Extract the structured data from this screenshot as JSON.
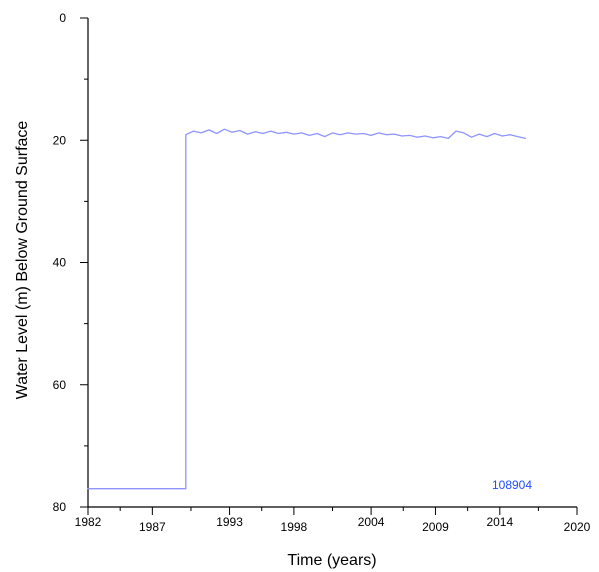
{
  "chart_data": {
    "type": "line",
    "title": "",
    "xlabel": "Time (years)",
    "ylabel": "Water Level (m) Below Ground Surface",
    "xlim": [
      1982,
      2020
    ],
    "ylim": [
      80,
      0
    ],
    "y_axis_inverted": true,
    "xticks": [
      1982,
      1987,
      1993,
      1998,
      2004,
      2009,
      2014,
      2020
    ],
    "xtick_labels": [
      "1982",
      "1987",
      "1993",
      "1998",
      "2004",
      "2009",
      "2014",
      "2020"
    ],
    "yticks": [
      0,
      20,
      40,
      60,
      80
    ],
    "ytick_labels": [
      "0",
      "20",
      "40",
      "60",
      "80"
    ],
    "grid": false,
    "legend": "none",
    "series_label": {
      "text": "108904",
      "color": "#1f4dff"
    },
    "series": [
      {
        "color": "#8f94ff",
        "x": [
          1982,
          1989.6,
          1989.6,
          1990.2,
          1990.8,
          1991.4,
          1992.0,
          1992.6,
          1993.2,
          1993.8,
          1994.4,
          1995.0,
          1995.6,
          1996.2,
          1996.8,
          1997.4,
          1998.0,
          1998.6,
          1999.2,
          1999.8,
          2000.4,
          2001.0,
          2001.6,
          2002.2,
          2002.8,
          2003.4,
          2004.0,
          2004.6,
          2005.2,
          2005.8,
          2006.4,
          2007.0,
          2007.6,
          2008.2,
          2008.8,
          2009.4,
          2010.0,
          2010.6,
          2011.2,
          2011.8,
          2012.4,
          2013.0,
          2013.6,
          2014.2,
          2014.8,
          2015.4,
          2016.0
        ],
        "y": [
          77.0,
          77.0,
          19.1,
          18.5,
          18.8,
          18.3,
          18.9,
          18.2,
          18.7,
          18.4,
          19.0,
          18.6,
          18.9,
          18.5,
          18.9,
          18.7,
          19.0,
          18.8,
          19.2,
          18.9,
          19.4,
          18.8,
          19.1,
          18.8,
          19.0,
          18.9,
          19.2,
          18.8,
          19.1,
          19.0,
          19.3,
          19.2,
          19.5,
          19.3,
          19.6,
          19.4,
          19.7,
          18.5,
          18.8,
          19.5,
          19.0,
          19.4,
          18.9,
          19.3,
          19.1,
          19.4,
          19.7
        ]
      }
    ]
  }
}
